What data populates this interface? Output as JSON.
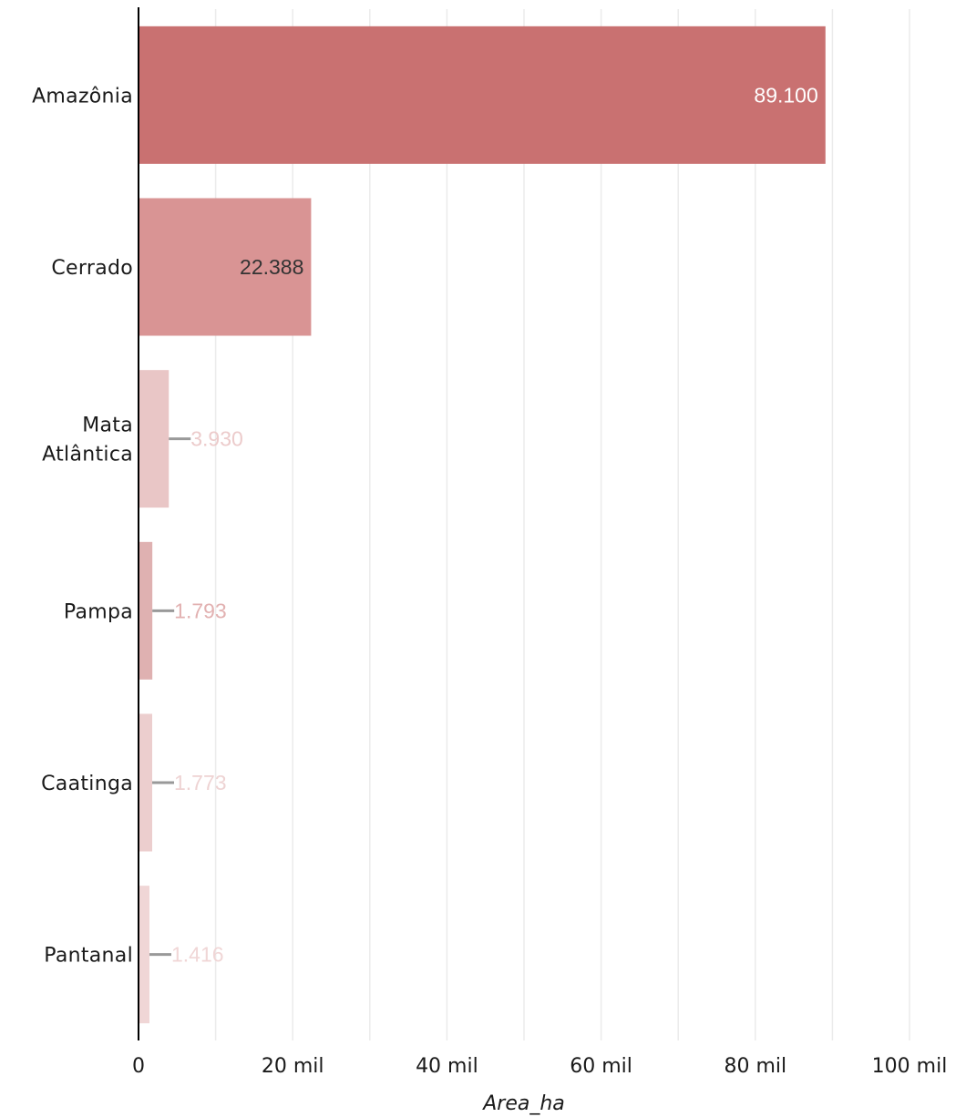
{
  "chart_data": {
    "type": "bar",
    "orientation": "horizontal",
    "categories": [
      "Amazônia",
      "Cerrado",
      "Mata Atlântica",
      "Pampa",
      "Caatinga",
      "Pantanal"
    ],
    "category_lines": [
      [
        "Amazônia"
      ],
      [
        "Cerrado"
      ],
      [
        "Mata",
        "Atlântica"
      ],
      [
        "Pampa"
      ],
      [
        "Caatinga"
      ],
      [
        "Pantanal"
      ]
    ],
    "values": [
      89100,
      22388,
      3930,
      1793,
      1773,
      1416
    ],
    "data_labels": [
      "89.100",
      "22.388",
      "3.930",
      "1.793",
      "1.773",
      "1.416"
    ],
    "bar_colors": [
      "#c97171",
      "#d99494",
      "#e9c6c6",
      "#dfb1b1",
      "#eccece",
      "#f0d6d6"
    ],
    "label_colors": [
      "#ffffff",
      "#333333",
      "#eccbcb",
      "#e2b1b1",
      "#eed3d3",
      "#f0d6d6"
    ],
    "leader_color": "#999999",
    "xlabel": "Area_ha",
    "ylabel": "",
    "xlim": [
      0,
      100000
    ],
    "xticks": [
      0,
      20000,
      40000,
      60000,
      80000,
      100000
    ],
    "xtick_labels": [
      "0",
      "20 mil",
      "40 mil",
      "60 mil",
      "80 mil",
      "100 mil"
    ],
    "grid": true,
    "legend": false
  }
}
